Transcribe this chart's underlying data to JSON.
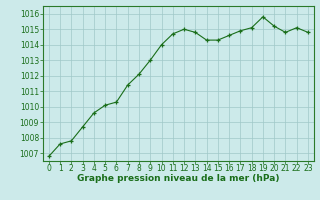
{
  "x": [
    0,
    1,
    2,
    3,
    4,
    5,
    6,
    7,
    8,
    9,
    10,
    11,
    12,
    13,
    14,
    15,
    16,
    17,
    18,
    19,
    20,
    21,
    22,
    23
  ],
  "y": [
    1006.8,
    1007.6,
    1007.8,
    1008.7,
    1009.6,
    1010.1,
    1010.3,
    1011.4,
    1012.1,
    1013.0,
    1014.0,
    1014.7,
    1015.0,
    1014.8,
    1014.3,
    1014.3,
    1014.6,
    1014.9,
    1015.1,
    1015.8,
    1015.2,
    1014.8,
    1015.1,
    1014.8
  ],
  "line_color": "#1a6e1a",
  "marker": "+",
  "markersize": 3.5,
  "linewidth": 0.8,
  "bg_color": "#cceaea",
  "grid_color": "#a0c8c8",
  "xlabel": "Graphe pression niveau de la mer (hPa)",
  "xlabel_color": "#1a6e1a",
  "xlabel_fontsize": 6.5,
  "tick_color": "#1a6e1a",
  "tick_fontsize": 5.5,
  "ylim": [
    1006.5,
    1016.5
  ],
  "yticks": [
    1007,
    1008,
    1009,
    1010,
    1011,
    1012,
    1013,
    1014,
    1015,
    1016
  ],
  "xlim": [
    -0.5,
    23.5
  ],
  "xticks": [
    0,
    1,
    2,
    3,
    4,
    5,
    6,
    7,
    8,
    9,
    10,
    11,
    12,
    13,
    14,
    15,
    16,
    17,
    18,
    19,
    20,
    21,
    22,
    23
  ],
  "spine_color": "#2a7a2a",
  "bottom_spine_color": "#2a7a2a"
}
